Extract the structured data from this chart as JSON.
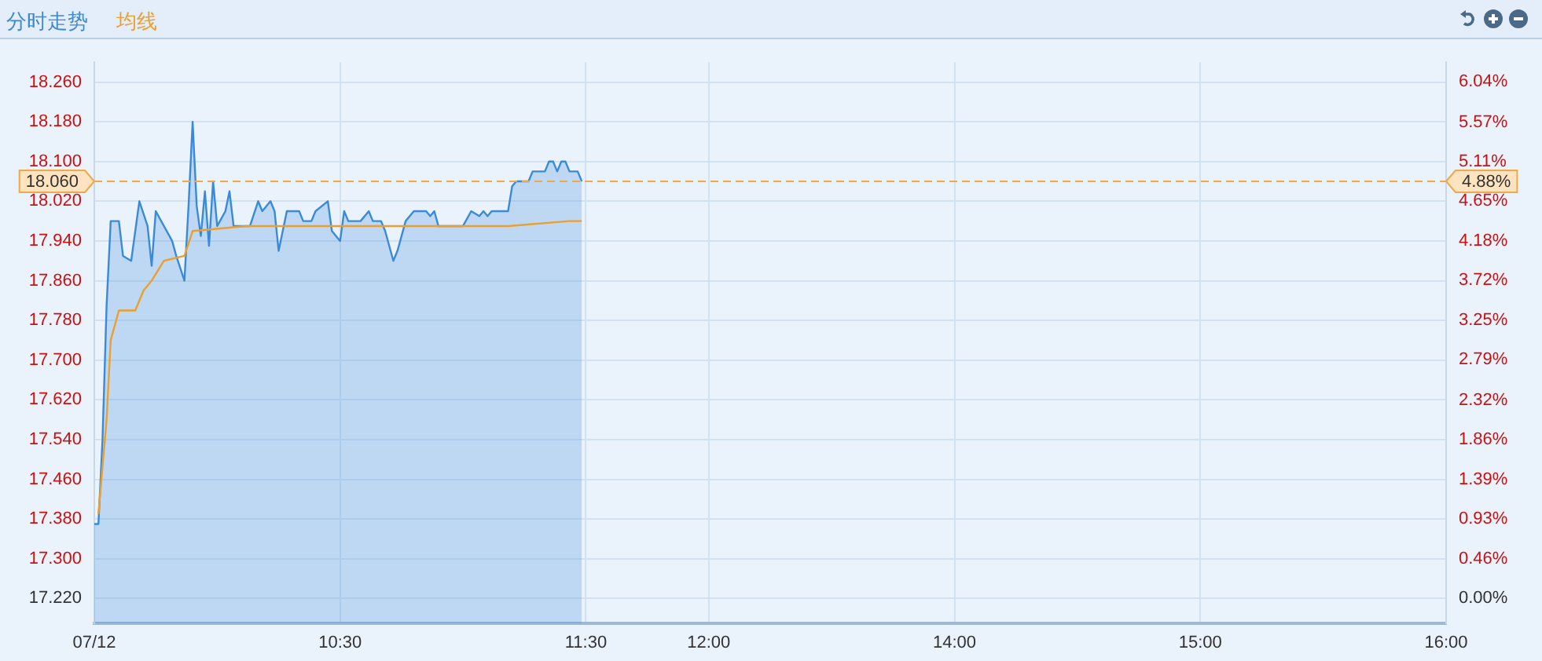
{
  "chart_data": {
    "type": "line",
    "legend": "top left",
    "grid": true,
    "marker": "none",
    "categories": [
      "07/12",
      null,
      null,
      null,
      null,
      null,
      null,
      null,
      null,
      null,
      null,
      null,
      null,
      null,
      null,
      null,
      null,
      null,
      null,
      null,
      null,
      null,
      null,
      null,
      null,
      null,
      null,
      null,
      null,
      null,
      null,
      null,
      null,
      null,
      null,
      null,
      null,
      null,
      null,
      null,
      null,
      null,
      null,
      null,
      null,
      null,
      null,
      null,
      null,
      null,
      null,
      null,
      null,
      null,
      null,
      null,
      null,
      null,
      null,
      null,
      "10:30",
      null,
      null,
      null,
      null,
      null,
      null,
      null,
      null,
      null,
      null,
      null,
      null,
      null,
      null,
      null,
      null,
      null,
      null,
      null,
      null,
      null,
      null,
      null,
      null,
      null,
      null,
      null,
      null,
      null,
      null,
      null,
      null,
      null,
      null,
      null,
      null,
      null,
      null,
      null,
      null,
      null,
      null,
      null,
      null,
      null,
      null,
      null,
      null,
      null,
      null,
      null,
      null,
      null,
      null,
      null,
      null,
      null,
      null,
      null,
      "11:30",
      null,
      null,
      null,
      null,
      null,
      null,
      null,
      null,
      null,
      null,
      null,
      null,
      null,
      null,
      null,
      null,
      null,
      null,
      null,
      null,
      null,
      null,
      null,
      null,
      null,
      null,
      null,
      null,
      null,
      "12:00",
      null,
      null,
      null,
      null,
      null,
      null,
      null,
      null,
      null,
      null,
      null,
      null,
      null,
      null,
      null,
      null,
      null,
      null,
      null,
      null,
      null,
      null,
      null,
      null,
      null,
      null,
      null,
      null,
      null,
      null,
      null,
      null,
      null,
      null,
      null,
      null,
      null,
      null,
      null,
      null,
      null,
      null,
      null,
      null,
      null,
      null,
      null,
      null,
      null,
      null,
      null,
      null,
      null,
      null,
      null,
      null,
      null,
      null,
      null,
      "14:00",
      null,
      null,
      null,
      null,
      null,
      null,
      null,
      null,
      null,
      null,
      null,
      null,
      null,
      null,
      null,
      null,
      null,
      null,
      null,
      null,
      null,
      null,
      null,
      null,
      null,
      null,
      null,
      null,
      null,
      null,
      null,
      null,
      null,
      null,
      null,
      null,
      null,
      null,
      null,
      null,
      null,
      null,
      null,
      null,
      null,
      null,
      null,
      null,
      null,
      null,
      null,
      null,
      null,
      null,
      null,
      null,
      null,
      null,
      null,
      "15:00",
      null,
      null,
      null,
      null,
      null,
      null,
      null,
      null,
      null,
      null,
      null,
      null,
      null,
      null,
      null,
      null,
      null,
      null,
      null,
      null,
      null,
      null,
      null,
      null,
      null,
      null,
      null,
      null,
      null,
      null,
      null,
      null,
      null,
      null,
      null,
      null,
      null,
      null,
      null,
      null,
      null,
      null,
      null,
      null,
      null,
      null,
      null,
      null,
      null,
      null,
      null,
      null,
      null,
      null,
      null,
      null,
      null,
      null,
      null,
      "16:00"
    ],
    "ylim": [
      17.17,
      18.3
    ],
    "yticks": [
      {
        "value": 17.22,
        "label": "17.220"
      },
      {
        "value": 17.3,
        "label": "17.300"
      },
      {
        "value": 17.38,
        "label": "17.380"
      },
      {
        "value": 17.46,
        "label": "17.460"
      },
      {
        "value": 17.54,
        "label": "17.540"
      },
      {
        "value": 17.62,
        "label": "17.620"
      },
      {
        "value": 17.7,
        "label": "17.700"
      },
      {
        "value": 17.78,
        "label": "17.780"
      },
      {
        "value": 17.86,
        "label": "17.860"
      },
      {
        "value": 17.94,
        "label": "17.940"
      },
      {
        "value": 18.02,
        "label": "18.020"
      },
      {
        "value": 18.1,
        "label": "18.100"
      },
      {
        "value": 18.18,
        "label": "18.180"
      },
      {
        "value": 18.26,
        "label": "18.260"
      }
    ],
    "y2lim": [
      -0.29,
      6.27
    ],
    "y2ticks": [
      {
        "value": 0,
        "label": "0.00%"
      },
      {
        "value": 0.46,
        "label": "0.46%"
      },
      {
        "value": 0.93,
        "label": "0.93%"
      },
      {
        "value": 1.39,
        "label": "1.39%"
      },
      {
        "value": 1.86,
        "label": "1.86%"
      },
      {
        "value": 2.32,
        "label": "2.32%"
      },
      {
        "value": 2.79,
        "label": "2.79%"
      },
      {
        "value": 3.25,
        "label": "3.25%"
      },
      {
        "value": 3.72,
        "label": "3.72%"
      },
      {
        "value": 4.18,
        "label": "4.18%"
      },
      {
        "value": 4.65,
        "label": "4.65%"
      },
      {
        "value": 5.11,
        "label": "5.11%"
      },
      {
        "value": 5.57,
        "label": "5.57%"
      },
      {
        "value": 6.04,
        "label": "6.04%"
      }
    ],
    "ref_lines": [
      {
        "axis": "y",
        "value": 18.06,
        "label": "18.060",
        "color": "#f0a848",
        "line_style": "dashed"
      }
    ],
    "annotations": [
      "4.88%"
    ],
    "series": [
      {
        "name": "分时走势",
        "type": "area",
        "color": "#3a8ad8",
        "values": [
          17.37,
          17.37,
          17.54,
          17.81,
          17.98,
          null,
          17.98,
          17.91,
          null,
          17.9,
          null,
          18.02,
          null,
          17.97,
          17.89,
          18.0,
          null,
          null,
          null,
          17.94,
          17.91,
          null,
          17.86,
          18.01,
          18.18,
          18.01,
          17.95,
          18.04,
          17.93,
          18.06,
          17.97,
          null,
          18.0,
          18.04,
          17.97,
          null,
          null,
          null,
          17.97,
          null,
          18.02,
          18.0,
          null,
          18.02,
          18.0,
          17.92,
          null,
          18.0,
          null,
          null,
          18.0,
          17.98,
          null,
          17.98,
          18.0,
          null,
          null,
          18.02,
          17.96,
          null,
          17.94,
          18.0,
          17.98,
          null,
          null,
          17.98,
          null,
          18.0,
          17.98,
          null,
          17.98,
          17.96,
          null,
          17.9,
          17.92,
          null,
          17.98,
          null,
          18.0,
          null,
          null,
          18.0,
          17.99,
          18.0,
          17.97,
          null,
          null,
          null,
          null,
          null,
          17.97,
          null,
          18.0,
          null,
          17.99,
          18.0,
          17.99,
          18.0,
          null,
          null,
          null,
          18.0,
          18.05,
          18.06,
          null,
          null,
          18.06,
          18.08,
          null,
          null,
          18.08,
          18.1,
          18.1,
          18.08,
          18.1,
          18.1,
          18.08,
          null,
          18.08,
          18.06,
          null,
          null,
          null,
          null,
          null,
          null,
          null,
          null,
          null,
          null,
          null,
          null,
          null,
          null,
          null,
          null,
          null,
          null,
          null,
          null,
          null,
          null,
          null,
          null,
          null,
          null,
          null,
          null,
          null,
          null,
          null,
          null,
          null,
          null,
          null,
          null,
          null,
          null,
          null,
          null,
          null,
          null,
          null,
          null,
          null,
          null,
          null,
          null,
          null,
          null,
          null,
          null,
          null,
          null,
          null,
          null,
          null,
          null,
          null,
          null,
          null,
          null,
          null,
          null,
          null,
          null,
          null,
          null,
          null,
          null,
          null,
          null,
          null,
          null,
          null,
          null,
          null,
          null,
          null,
          null,
          null,
          null,
          null,
          null,
          null,
          null,
          null,
          null,
          null,
          null,
          null,
          null,
          null,
          null,
          null,
          null,
          null,
          null,
          null,
          null,
          null,
          null,
          null,
          null,
          null,
          null,
          null,
          null,
          null,
          null,
          null,
          null,
          null,
          null,
          null,
          null,
          null,
          null,
          null,
          null,
          null,
          null,
          null,
          null,
          null,
          null,
          null,
          null,
          null,
          null,
          null,
          null,
          null,
          null,
          null,
          null,
          null,
          null,
          null,
          null,
          null,
          null,
          null,
          null,
          null,
          null,
          null,
          null,
          null,
          null,
          null,
          null,
          null,
          null,
          null,
          null,
          null,
          null,
          null,
          null,
          null,
          null,
          null,
          null,
          null,
          null,
          null,
          null,
          null,
          null,
          null,
          null,
          null,
          null,
          null,
          null,
          null,
          null,
          null,
          null,
          null,
          null,
          null,
          null,
          null,
          null,
          null,
          null,
          null,
          null,
          null,
          null,
          null,
          null,
          null,
          null,
          null,
          null,
          null,
          null,
          null,
          null,
          null,
          null,
          null,
          null,
          null,
          null,
          null,
          null,
          null
        ]
      },
      {
        "name": "均线",
        "type": "line",
        "color": "#e8a030",
        "values": [
          null,
          17.39,
          null,
          17.58,
          17.74,
          null,
          17.8,
          null,
          null,
          null,
          17.8,
          null,
          17.84,
          null,
          17.86,
          null,
          null,
          17.9,
          null,
          null,
          null,
          null,
          17.91,
          null,
          17.96,
          null,
          null,
          null,
          null,
          null,
          null,
          null,
          null,
          null,
          null,
          null,
          null,
          17.97,
          null,
          null,
          null,
          null,
          null,
          null,
          null,
          null,
          null,
          null,
          null,
          17.97,
          null,
          null,
          null,
          null,
          null,
          null,
          null,
          null,
          null,
          null,
          null,
          17.97,
          null,
          null,
          null,
          null,
          null,
          null,
          null,
          null,
          null,
          null,
          null,
          null,
          null,
          null,
          null,
          null,
          null,
          null,
          null,
          null,
          null,
          null,
          null,
          null,
          null,
          null,
          null,
          null,
          null,
          null,
          null,
          null,
          null,
          null,
          null,
          null,
          null,
          null,
          null,
          17.97,
          null,
          null,
          null,
          null,
          null,
          null,
          null,
          null,
          null,
          null,
          null,
          null,
          null,
          null,
          17.98,
          null,
          null,
          17.98,
          null,
          null,
          null,
          null,
          null,
          null,
          null,
          null,
          null,
          null,
          null,
          null,
          null,
          null,
          null,
          null,
          null,
          null,
          null,
          null,
          null,
          null,
          null,
          null,
          null,
          null,
          null,
          null,
          null,
          null,
          null,
          null,
          null,
          null,
          null,
          null,
          null,
          null,
          null,
          null,
          null,
          null,
          null,
          null,
          null,
          null,
          null,
          null,
          null,
          null,
          null,
          null,
          null,
          null,
          null,
          null,
          null,
          null,
          null,
          null,
          null,
          null,
          null,
          null,
          null,
          null,
          null,
          null,
          null,
          null,
          null,
          null,
          null,
          null,
          null,
          null,
          null,
          null,
          null,
          null,
          null,
          null,
          null,
          null,
          null,
          null,
          null,
          null,
          null,
          null,
          null,
          null,
          null,
          null,
          null,
          null,
          null,
          null,
          null,
          null,
          null,
          null,
          null,
          null,
          null,
          null,
          null,
          null,
          null,
          null,
          null,
          null,
          null,
          null,
          null,
          null,
          null,
          null,
          null,
          null,
          null,
          null,
          null,
          null,
          null,
          null,
          null,
          null,
          null,
          null,
          null,
          null,
          null,
          null,
          null,
          null,
          null,
          null,
          null,
          null,
          null,
          null,
          null,
          null,
          null,
          null,
          null,
          null,
          null,
          null,
          null,
          null,
          null,
          null,
          null,
          null,
          null,
          null,
          null,
          null,
          null,
          null,
          null,
          null,
          null,
          null,
          null,
          null,
          null,
          null,
          null,
          null,
          null,
          null,
          null,
          null,
          null,
          null,
          null,
          null,
          null,
          null,
          null,
          null,
          null,
          null,
          null,
          null,
          null,
          null,
          null,
          null,
          null,
          null,
          null,
          null,
          null,
          null,
          null,
          null,
          null,
          null,
          null,
          null,
          null,
          null,
          null,
          null,
          null,
          null,
          null
        ]
      }
    ]
  }
}
